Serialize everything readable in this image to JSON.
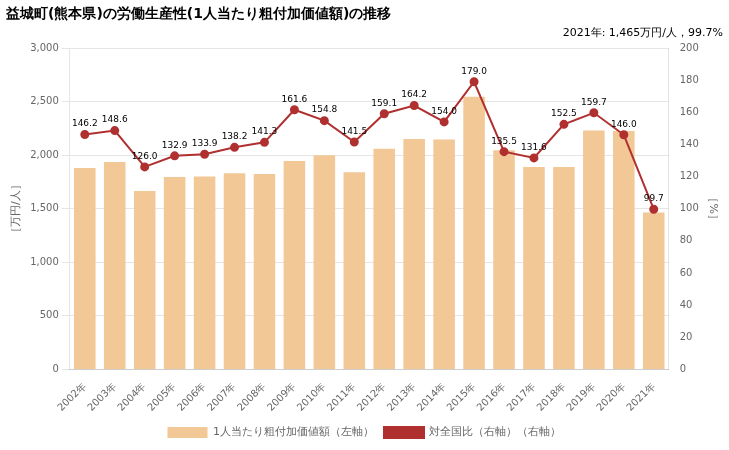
{
  "chart_data": {
    "type": "bar",
    "title": "益城町(熊本県)の労働生産性(1人当たり粗付加価値額)の推移",
    "annotation": "2021年: 1,465万円/人，99.7%",
    "ylabel": "［万円/人］",
    "y2label": "［%］",
    "categories": [
      "2002年",
      "2003年",
      "2004年",
      "2005年",
      "2006年",
      "2007年",
      "2008年",
      "2009年",
      "2010年",
      "2011年",
      "2012年",
      "2013年",
      "2014年",
      "2015年",
      "2016年",
      "2017年",
      "2018年",
      "2019年",
      "2020年",
      "2021年"
    ],
    "series": [
      {
        "name": "1人当たり粗付加価値額（左軸）",
        "type": "bar",
        "color": "#F2C896",
        "values": [
          1880,
          1935,
          1665,
          1795,
          1800,
          1830,
          1825,
          1945,
          2000,
          1840,
          2060,
          2150,
          2145,
          2545,
          2045,
          1890,
          1890,
          2230,
          2225,
          1465
        ]
      },
      {
        "name": "対全国比（右軸）（右軸）",
        "type": "line",
        "axis": "y2",
        "color": "#B03030",
        "marker": "circle",
        "line_style": "solid",
        "data_labels": true,
        "values": [
          146.2,
          148.6,
          126.0,
          132.9,
          133.9,
          138.2,
          141.3,
          161.6,
          154.8,
          141.5,
          159.1,
          164.2,
          154.0,
          179.0,
          135.5,
          131.6,
          152.5,
          159.7,
          146.0,
          99.7
        ],
        "value_labels": [
          "146.2",
          "148.6",
          "126.0",
          "132.9",
          "133.9",
          "138.2",
          "141.3",
          "161.6",
          "154.8",
          "141.5",
          "159.1",
          "164.2",
          "154.0",
          "179.0",
          "135.5",
          "131.6",
          "152.5",
          "159.7",
          "146.0",
          "99.7"
        ]
      }
    ],
    "ylim": [
      0,
      3000
    ],
    "yticks": [
      0,
      500,
      {
        "value": 1000,
        "label": "1,000"
      },
      {
        "value": 1500,
        "label": "1,500"
      },
      {
        "value": 2000,
        "label": "2,000"
      },
      {
        "value": 2500,
        "label": "2,500"
      },
      {
        "value": 3000,
        "label": "3,000"
      }
    ],
    "y2lim": [
      0,
      200
    ],
    "y2ticks": [
      0,
      20,
      40,
      60,
      80,
      100,
      120,
      140,
      160,
      180,
      200
    ],
    "grid": true,
    "legend": "bottom"
  }
}
